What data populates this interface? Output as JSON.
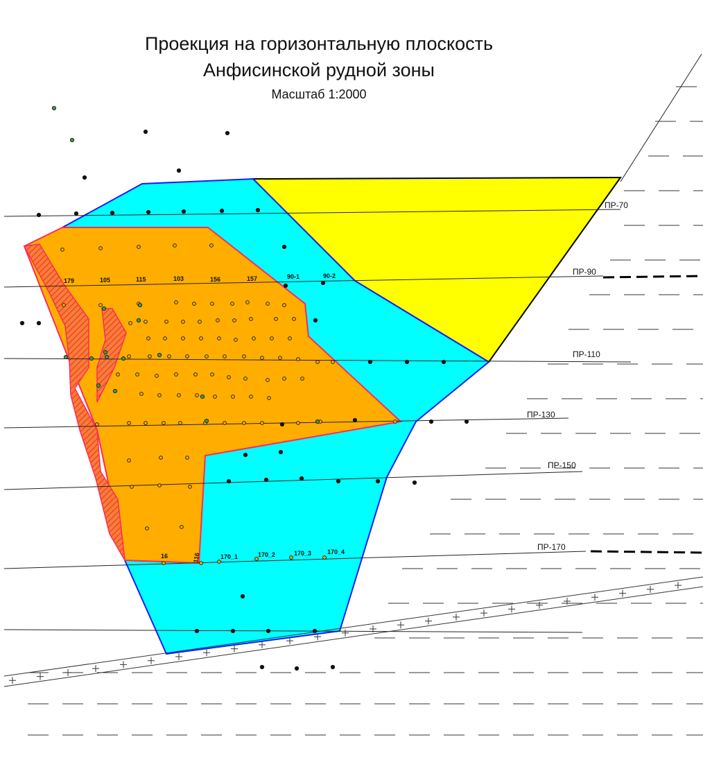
{
  "title": {
    "line1": "Проекция на горизонтальную плоскость",
    "line2": "Анфисинской рудной зоны",
    "scale": "Масштаб 1:2000"
  },
  "profiles": [
    "ПР-70",
    "ПР-90",
    "ПР-110",
    "ПР-130",
    "ПР-150",
    "ПР-170"
  ],
  "drillholes_row_90": [
    "179",
    "105",
    "115",
    "103",
    "156",
    "157",
    "90-1",
    "90-2"
  ],
  "drillholes_row_170": [
    "16",
    "116",
    "170_1",
    "170_2",
    "170_3",
    "170_4"
  ],
  "colors": {
    "zone_cyan": "#00ffff",
    "zone_yellow": "#ffff00",
    "ore_orange": "#ffae00",
    "hatched_body": "#ff5a1a",
    "boundary_blue": "#1a1aff",
    "boundary_red": "#ff2a5a",
    "dot_green": "#3aa33a"
  }
}
